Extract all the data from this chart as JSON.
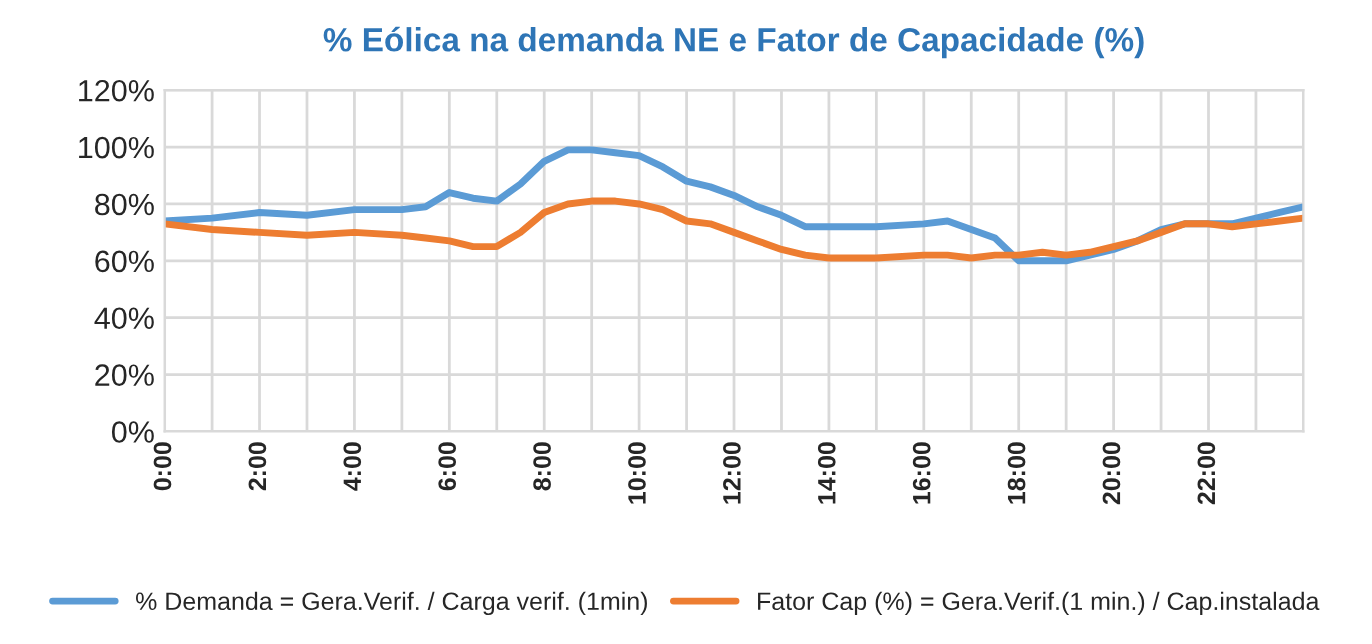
{
  "chart_data": {
    "type": "line",
    "title": "% Eólica na demanda NE e Fator de Capacidade (%)",
    "x": [
      0,
      1,
      2,
      3,
      4,
      5,
      5.5,
      6,
      6.5,
      7,
      7.5,
      8,
      8.5,
      9,
      9.5,
      10,
      10.5,
      11,
      11.5,
      12,
      12.5,
      13,
      13.5,
      14,
      15,
      16,
      16.5,
      17,
      17.5,
      18,
      18.5,
      19,
      19.5,
      20,
      20.5,
      21,
      21.5,
      22,
      22.5,
      23,
      23.5,
      24
    ],
    "series": [
      {
        "name": "% Demanda = Gera.Verif. / Carga verif. (1min)",
        "color": "#5b9bd5",
        "values": [
          74,
          75,
          77,
          76,
          78,
          78,
          79,
          84,
          82,
          81,
          87,
          95,
          99,
          99,
          98,
          97,
          93,
          88,
          86,
          83,
          79,
          76,
          72,
          72,
          72,
          73,
          74,
          71,
          68,
          60,
          60,
          60,
          62,
          64,
          67,
          71,
          73,
          73,
          73,
          75,
          77,
          79
        ]
      },
      {
        "name": "Fator Cap (%) = Gera.Verif.(1 min.) / Cap.instalada",
        "color": "#ed7d31",
        "values": [
          73,
          71,
          70,
          69,
          70,
          69,
          68,
          67,
          65,
          65,
          70,
          77,
          80,
          81,
          81,
          80,
          78,
          74,
          73,
          70,
          67,
          64,
          62,
          61,
          61,
          62,
          62,
          61,
          62,
          62,
          63,
          62,
          63,
          65,
          67,
          70,
          73,
          73,
          72,
          73,
          74,
          75
        ]
      }
    ],
    "xlim": [
      0,
      24
    ],
    "xticks": [
      {
        "value": 0,
        "label": "0:00"
      },
      {
        "value": 1,
        "label": null
      },
      {
        "value": 2,
        "label": "2:00"
      },
      {
        "value": 3,
        "label": null
      },
      {
        "value": 4,
        "label": "4:00"
      },
      {
        "value": 5,
        "label": null
      },
      {
        "value": 6,
        "label": "6:00"
      },
      {
        "value": 7,
        "label": null
      },
      {
        "value": 8,
        "label": "8:00"
      },
      {
        "value": 9,
        "label": null
      },
      {
        "value": 10,
        "label": "10:00"
      },
      {
        "value": 11,
        "label": null
      },
      {
        "value": 12,
        "label": "12:00"
      },
      {
        "value": 13,
        "label": null
      },
      {
        "value": 14,
        "label": "14:00"
      },
      {
        "value": 15,
        "label": null
      },
      {
        "value": 16,
        "label": "16:00"
      },
      {
        "value": 17,
        "label": null
      },
      {
        "value": 18,
        "label": "18:00"
      },
      {
        "value": 19,
        "label": null
      },
      {
        "value": 20,
        "label": "20:00"
      },
      {
        "value": 21,
        "label": null
      },
      {
        "value": 22,
        "label": "22:00"
      },
      {
        "value": 23,
        "label": null
      },
      {
        "value": 24,
        "label": null
      }
    ],
    "ylim": [
      0,
      120
    ],
    "yticks": [
      {
        "value": 0,
        "label": "0%"
      },
      {
        "value": 20,
        "label": "20%"
      },
      {
        "value": 40,
        "label": "40%"
      },
      {
        "value": 60,
        "label": "60%"
      },
      {
        "value": 80,
        "label": "80%"
      },
      {
        "value": 100,
        "label": "100%"
      },
      {
        "value": 120,
        "label": "120%"
      }
    ],
    "grid": true,
    "legend": "bottom"
  }
}
